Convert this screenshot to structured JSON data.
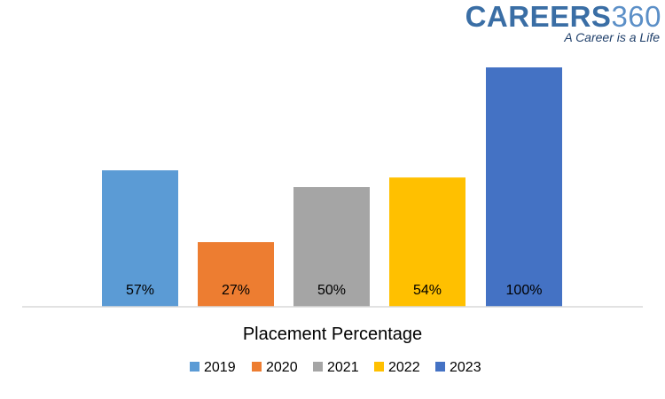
{
  "logo": {
    "brand_main": "CAREERS",
    "brand_num": "360",
    "tagline": "A Career is a Life"
  },
  "chart_data": {
    "type": "bar",
    "title": "",
    "xlabel": "Placement Percentage",
    "ylabel": "",
    "ylim": [
      0,
      100
    ],
    "grid": false,
    "legend_position": "bottom",
    "categories": [
      "2019",
      "2020",
      "2021",
      "2022",
      "2023"
    ],
    "values": [
      57,
      27,
      50,
      54,
      100
    ],
    "data_labels": [
      "57%",
      "27%",
      "50%",
      "54%",
      "100%"
    ],
    "colors": [
      "#5b9bd5",
      "#ed7d31",
      "#a5a5a5",
      "#ffc000",
      "#4472c4"
    ],
    "legend": [
      "2019",
      "2020",
      "2021",
      "2022",
      "2023"
    ]
  }
}
